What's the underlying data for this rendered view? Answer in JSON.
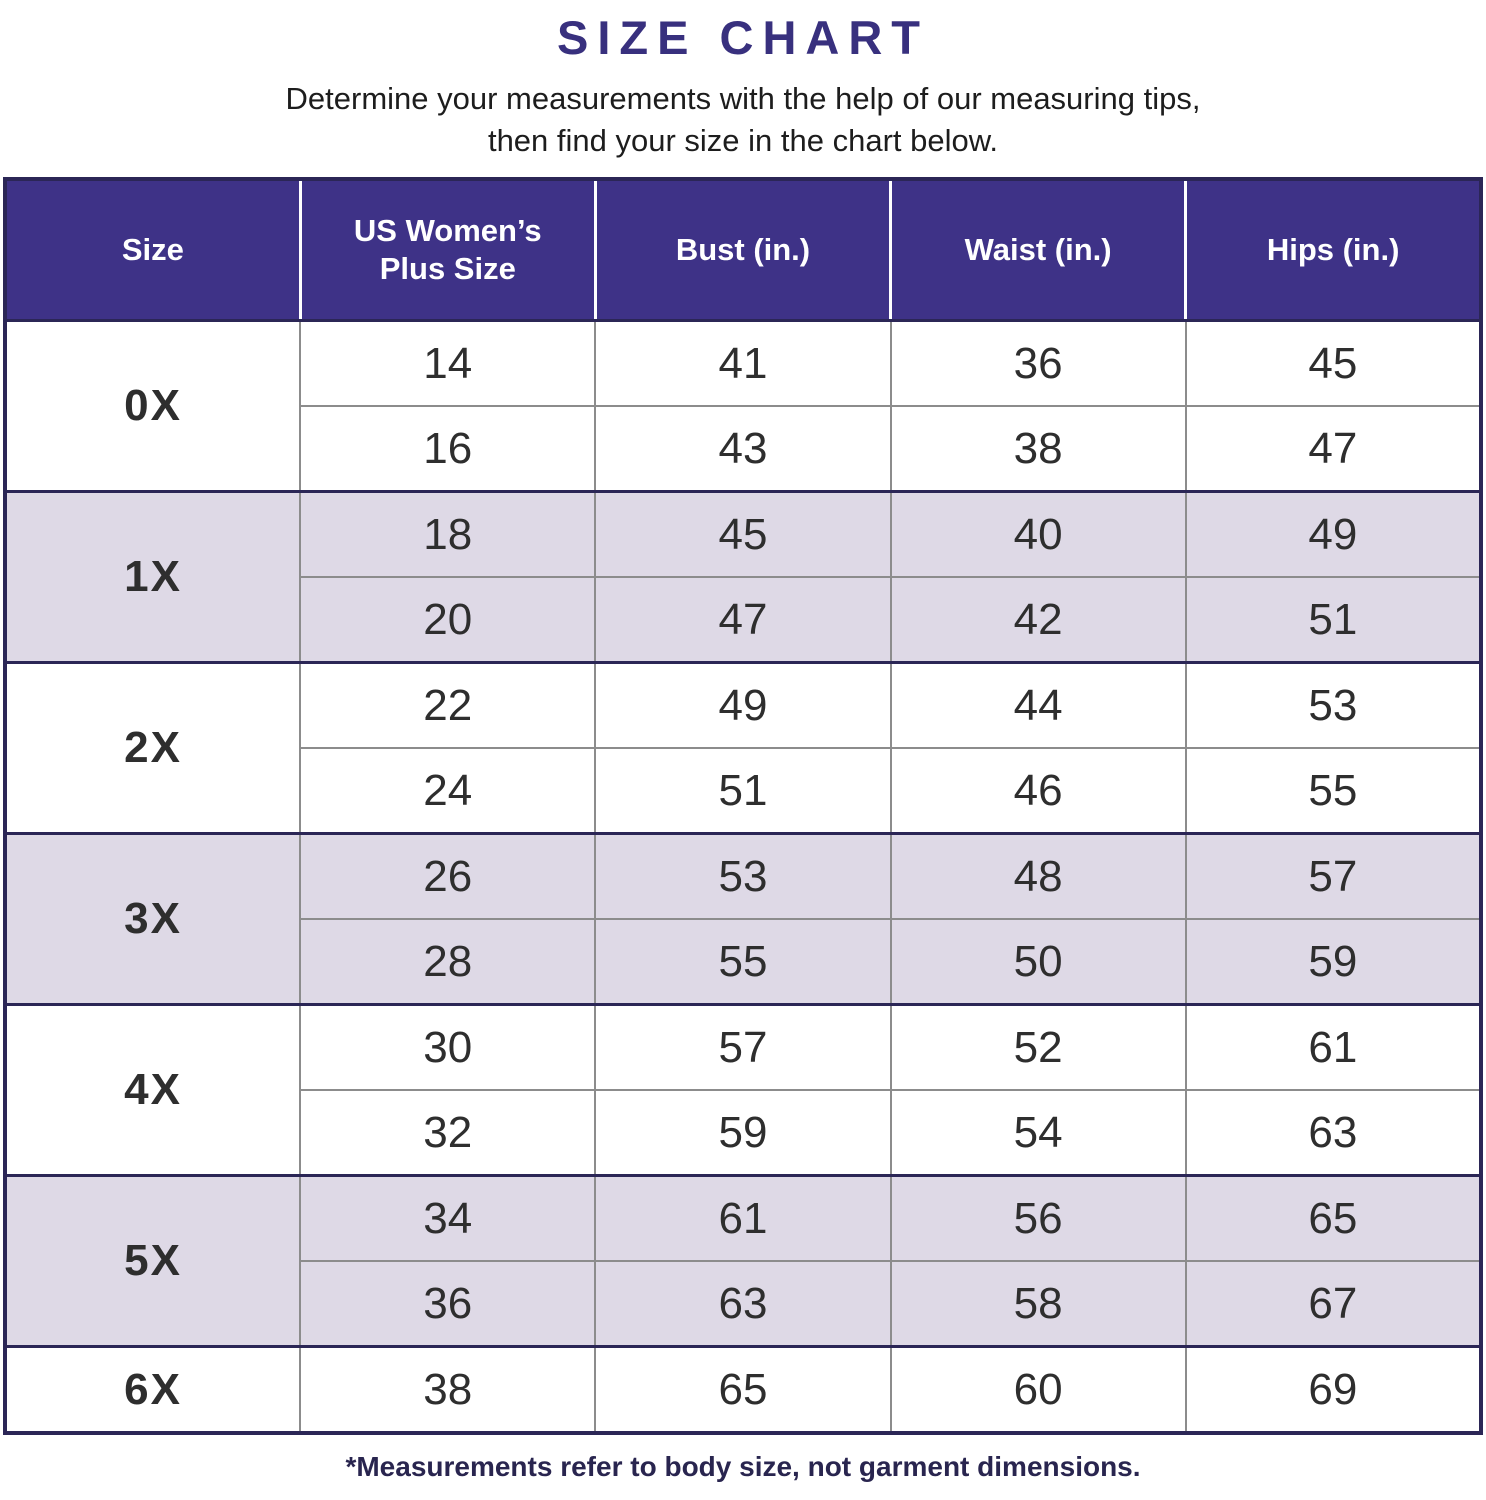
{
  "page": {
    "title": "SIZE CHART",
    "subtitle_line1": "Determine your measurements with the help of our measuring tips,",
    "subtitle_line2": "then find your size in the chart below.",
    "footnote": "*Measurements refer to body size, not garment dimensions."
  },
  "colors": {
    "header_bg": "#3e3287",
    "title_purple": "#38307e",
    "size_label_purple": "#3e3287",
    "row_shaded_bg": "#ded9e6",
    "grid_line_gray": "#8c8c8c",
    "heavy_line_navy": "#2b2656",
    "body_text": "#2e2e2e",
    "footnote_text": "#29254f",
    "header_text": "#ffffff"
  },
  "table": {
    "headers": [
      "Size",
      "US Women’s Plus Size",
      "Bust (in.)",
      "Waist (in.)",
      "Hips (in.)"
    ],
    "groups": [
      {
        "label": "0X",
        "shaded": false,
        "rows": [
          {
            "us": "14",
            "bust": "41",
            "waist": "36",
            "hips": "45"
          },
          {
            "us": "16",
            "bust": "43",
            "waist": "38",
            "hips": "47"
          }
        ]
      },
      {
        "label": "1X",
        "shaded": true,
        "rows": [
          {
            "us": "18",
            "bust": "45",
            "waist": "40",
            "hips": "49"
          },
          {
            "us": "20",
            "bust": "47",
            "waist": "42",
            "hips": "51"
          }
        ]
      },
      {
        "label": "2X",
        "shaded": false,
        "rows": [
          {
            "us": "22",
            "bust": "49",
            "waist": "44",
            "hips": "53"
          },
          {
            "us": "24",
            "bust": "51",
            "waist": "46",
            "hips": "55"
          }
        ]
      },
      {
        "label": "3X",
        "shaded": true,
        "rows": [
          {
            "us": "26",
            "bust": "53",
            "waist": "48",
            "hips": "57"
          },
          {
            "us": "28",
            "bust": "55",
            "waist": "50",
            "hips": "59"
          }
        ]
      },
      {
        "label": "4X",
        "shaded": false,
        "rows": [
          {
            "us": "30",
            "bust": "57",
            "waist": "52",
            "hips": "61"
          },
          {
            "us": "32",
            "bust": "59",
            "waist": "54",
            "hips": "63"
          }
        ]
      },
      {
        "label": "5X",
        "shaded": true,
        "rows": [
          {
            "us": "34",
            "bust": "61",
            "waist": "56",
            "hips": "65"
          },
          {
            "us": "36",
            "bust": "63",
            "waist": "58",
            "hips": "67"
          }
        ]
      },
      {
        "label": "6X",
        "shaded": false,
        "rows": [
          {
            "us": "38",
            "bust": "65",
            "waist": "60",
            "hips": "69"
          }
        ]
      }
    ]
  }
}
